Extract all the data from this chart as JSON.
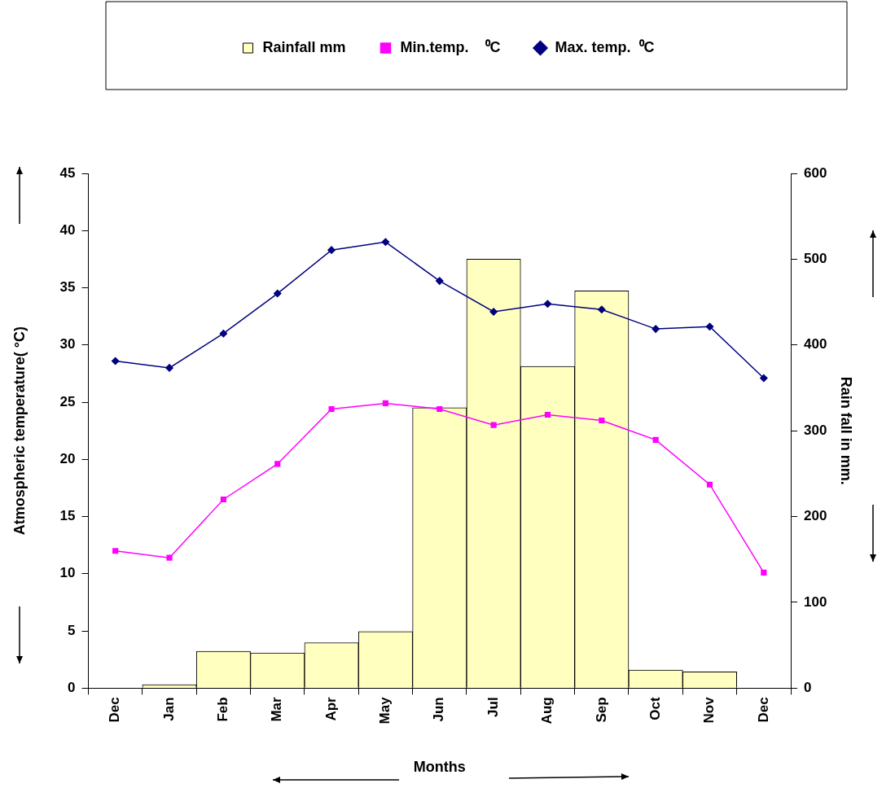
{
  "chart_data": {
    "type": "bar",
    "xlabel": "Months",
    "ylabel": "Atmospheric temperature( °C)",
    "y2label": "Rain fall in mm.",
    "categories": [
      "Dec",
      "Jan",
      "Feb",
      "Mar",
      "Apr",
      "May",
      "Jun",
      "Jul",
      "Aug",
      "Sep",
      "Oct",
      "Nov",
      "Dec"
    ],
    "series": [
      {
        "name": "Rainfall mm",
        "axis": "y2",
        "color": "#ffffc0",
        "values": [
          null,
          4,
          43,
          41,
          53,
          66,
          327,
          500,
          375,
          463,
          21,
          19,
          null
        ]
      },
      {
        "name": "Min.temp.    ⁰C",
        "type": "line",
        "marker": "square",
        "color": "#ff00ff",
        "values": [
          12.0,
          11.4,
          16.5,
          19.6,
          24.4,
          24.9,
          24.4,
          23.0,
          23.9,
          23.4,
          21.7,
          17.8,
          10.1
        ]
      },
      {
        "name": "Max. temp.  ⁰C",
        "type": "line",
        "marker": "diamond",
        "color": "#000080",
        "values": [
          28.6,
          28.0,
          31.0,
          34.5,
          38.3,
          39.0,
          35.6,
          32.9,
          33.6,
          33.1,
          31.4,
          31.6,
          27.1
        ]
      }
    ],
    "ylim": [
      0,
      45
    ],
    "yticks": [
      0,
      5,
      10,
      15,
      20,
      25,
      30,
      35,
      40,
      45
    ],
    "y2lim": [
      0,
      600
    ],
    "y2ticks": [
      0,
      100,
      200,
      300,
      400,
      500,
      600
    ],
    "grid": false,
    "legend": "top"
  }
}
